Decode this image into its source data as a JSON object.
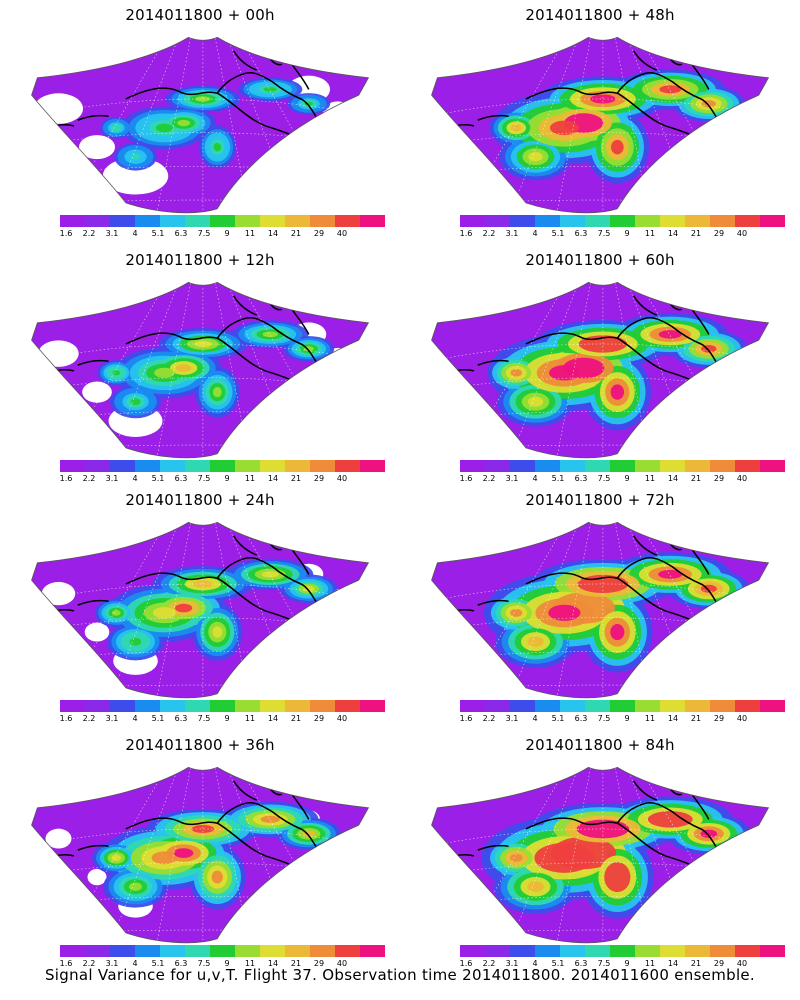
{
  "caption": "Signal Variance for u,v,T. Flight 37. Observation time 2014011800. 2014011600 ensemble.",
  "colorbar": {
    "colors": [
      "#9b1fe6",
      "#8a2ae8",
      "#3d4dec",
      "#1a8cf0",
      "#28c4ee",
      "#2fd8b0",
      "#22cc33",
      "#99dd33",
      "#dddd33",
      "#ecb838",
      "#ee8c3a",
      "#ee3f3f",
      "#ee1180"
    ],
    "ticks": [
      "1.6",
      "2.2",
      "3.1",
      "4",
      "5.1",
      "6.3",
      "7.5",
      "9",
      "11",
      "14",
      "21",
      "29",
      "40"
    ]
  },
  "panels": [
    {
      "title": "2014011800 + 00h",
      "intensity": 0.15
    },
    {
      "title": "2014011800 + 48h",
      "intensity": 0.7
    },
    {
      "title": "2014011800 + 12h",
      "intensity": 0.3
    },
    {
      "title": "2014011800 + 60h",
      "intensity": 0.78
    },
    {
      "title": "2014011800 + 24h",
      "intensity": 0.42
    },
    {
      "title": "2014011800 + 72h",
      "intensity": 0.85
    },
    {
      "title": "2014011800 + 36h",
      "intensity": 0.55
    },
    {
      "title": "2014011800 + 84h",
      "intensity": 0.9
    }
  ]
}
